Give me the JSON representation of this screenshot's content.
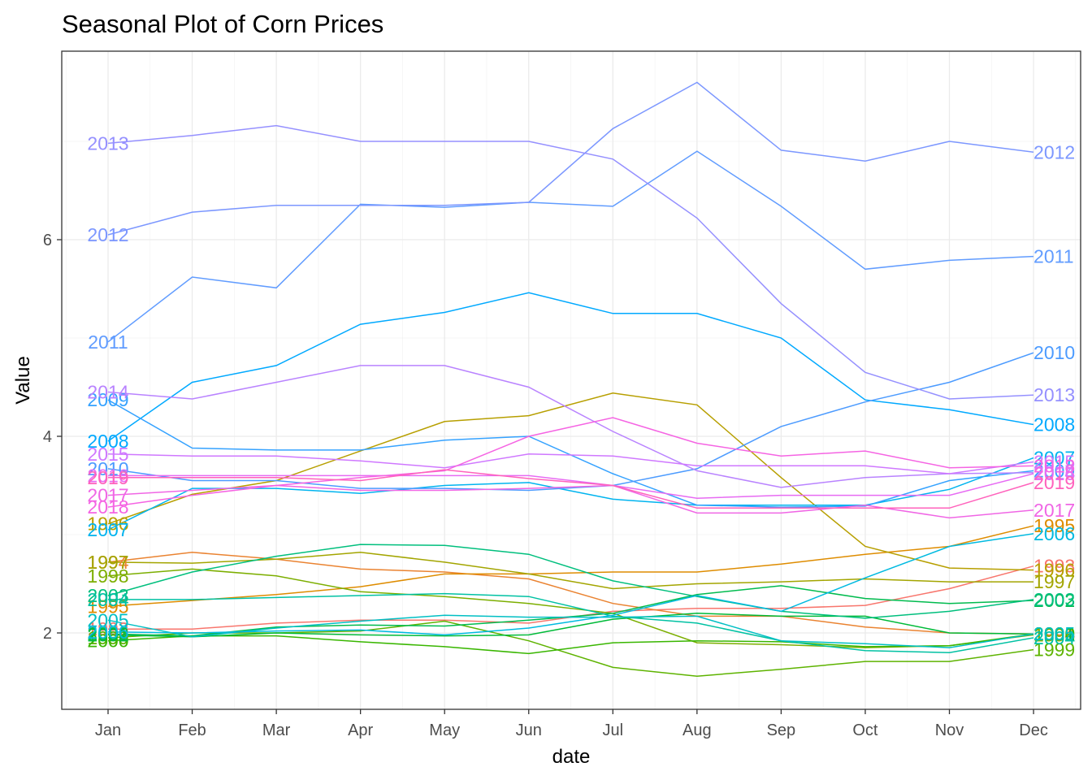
{
  "chart_data": {
    "type": "line",
    "title": "Seasonal Plot of Corn Prices",
    "xlabel": "date",
    "ylabel": "Value",
    "categories": [
      "Jan",
      "Feb",
      "Mar",
      "Apr",
      "May",
      "Jun",
      "Jul",
      "Aug",
      "Sep",
      "Oct",
      "Nov",
      "Dec"
    ],
    "ylim": [
      1.2,
      7.9
    ],
    "yticks": [
      2,
      4,
      6
    ],
    "grid": true,
    "legend": "none (direct year labels at both ends of each line)",
    "series": [
      {
        "name": "1993",
        "color": "#F8766D",
        "values": [
          2.04,
          2.04,
          2.1,
          2.13,
          2.13,
          2.1,
          2.22,
          2.25,
          2.25,
          2.28,
          2.45,
          2.68
        ]
      },
      {
        "name": "1994",
        "color": "#EA8331",
        "values": [
          2.72,
          2.82,
          2.75,
          2.65,
          2.62,
          2.55,
          2.3,
          2.17,
          2.17,
          2.06,
          2.0,
          1.99
        ]
      },
      {
        "name": "1995",
        "color": "#DE8C00",
        "values": [
          2.27,
          2.33,
          2.39,
          2.47,
          2.6,
          2.6,
          2.62,
          2.62,
          2.7,
          2.8,
          2.88,
          3.09
        ]
      },
      {
        "name": "1996",
        "color": "#B79F00",
        "values": [
          3.11,
          3.41,
          3.55,
          3.85,
          4.15,
          4.21,
          4.44,
          4.32,
          3.58,
          2.88,
          2.66,
          2.64
        ]
      },
      {
        "name": "1997",
        "color": "#A3A500",
        "values": [
          2.72,
          2.71,
          2.75,
          2.82,
          2.72,
          2.6,
          2.45,
          2.5,
          2.52,
          2.55,
          2.52,
          2.52
        ]
      },
      {
        "name": "1998",
        "color": "#7CAE00",
        "values": [
          2.58,
          2.65,
          2.58,
          2.42,
          2.37,
          2.3,
          2.2,
          1.9,
          1.88,
          1.85,
          1.87,
          1.98
        ]
      },
      {
        "name": "1999",
        "color": "#5EB300",
        "values": [
          1.95,
          2.0,
          2.0,
          2.02,
          2.12,
          1.92,
          1.65,
          1.56,
          1.63,
          1.71,
          1.71,
          1.83
        ]
      },
      {
        "name": "2000",
        "color": "#39B600",
        "values": [
          1.92,
          1.97,
          1.97,
          1.91,
          1.86,
          1.79,
          1.9,
          1.92,
          1.91,
          1.86,
          1.87,
          1.99
        ]
      },
      {
        "name": "2001",
        "color": "#00BA38",
        "values": [
          1.98,
          1.96,
          2.0,
          1.98,
          1.97,
          1.98,
          2.14,
          2.2,
          2.17,
          2.17,
          2.0,
          1.99
        ]
      },
      {
        "name": "2002",
        "color": "#00BB4E",
        "values": [
          1.99,
          1.97,
          2.06,
          2.08,
          2.07,
          2.13,
          2.2,
          2.39,
          2.48,
          2.35,
          2.3,
          2.33
        ]
      },
      {
        "name": "2003",
        "color": "#00BF7D",
        "values": [
          2.38,
          2.62,
          2.78,
          2.9,
          2.89,
          2.8,
          2.53,
          2.37,
          2.22,
          2.15,
          2.22,
          2.34
        ]
      },
      {
        "name": "2004",
        "color": "#00C1A3",
        "values": [
          2.34,
          2.34,
          2.36,
          2.38,
          2.4,
          2.37,
          2.17,
          2.1,
          1.92,
          1.82,
          1.8,
          1.95
        ]
      },
      {
        "name": "2005",
        "color": "#00BFC4",
        "values": [
          2.13,
          1.96,
          2.05,
          2.12,
          2.18,
          2.16,
          2.16,
          2.17,
          1.92,
          1.89,
          1.85,
          1.99
        ]
      },
      {
        "name": "2006",
        "color": "#00BAE0",
        "values": [
          2.01,
          2.0,
          2.02,
          2.03,
          1.98,
          2.05,
          2.18,
          2.38,
          2.22,
          2.56,
          2.88,
          3.01
        ]
      },
      {
        "name": "2007",
        "color": "#00B4EF",
        "values": [
          3.05,
          3.47,
          3.47,
          3.42,
          3.5,
          3.53,
          3.36,
          3.3,
          3.3,
          3.3,
          3.46,
          3.78
        ]
      },
      {
        "name": "2008",
        "color": "#00A9FF",
        "values": [
          3.95,
          4.55,
          4.72,
          5.14,
          5.26,
          5.46,
          5.25,
          5.25,
          5.0,
          4.37,
          4.27,
          4.12
        ]
      },
      {
        "name": "2009",
        "color": "#35A2FF",
        "values": [
          4.37,
          3.88,
          3.86,
          3.86,
          3.96,
          4.0,
          3.62,
          3.3,
          3.28,
          3.29,
          3.55,
          3.65
        ]
      },
      {
        "name": "2010",
        "color": "#4C9BFF",
        "values": [
          3.67,
          3.55,
          3.55,
          3.47,
          3.47,
          3.45,
          3.5,
          3.67,
          4.1,
          4.35,
          4.55,
          4.85
        ]
      },
      {
        "name": "2011",
        "color": "#619CFF",
        "values": [
          4.96,
          5.62,
          5.51,
          6.36,
          6.33,
          6.38,
          6.34,
          6.9,
          6.34,
          5.7,
          5.79,
          5.83
        ]
      },
      {
        "name": "2012",
        "color": "#7C97FF",
        "values": [
          6.05,
          6.28,
          6.35,
          6.35,
          6.35,
          6.38,
          7.13,
          7.6,
          6.91,
          6.8,
          7.0,
          6.89
        ]
      },
      {
        "name": "2013",
        "color": "#9590FF",
        "values": [
          6.98,
          7.06,
          7.16,
          7.0,
          7.0,
          7.0,
          6.82,
          6.22,
          5.35,
          4.65,
          4.38,
          4.42
        ]
      },
      {
        "name": "2014",
        "color": "#B983FF",
        "values": [
          4.45,
          4.38,
          4.55,
          4.72,
          4.72,
          4.5,
          4.05,
          3.65,
          3.48,
          3.58,
          3.62,
          3.63
        ]
      },
      {
        "name": "2015",
        "color": "#CF78FF",
        "values": [
          3.82,
          3.8,
          3.8,
          3.75,
          3.68,
          3.82,
          3.8,
          3.7,
          3.7,
          3.7,
          3.62,
          3.74
        ]
      },
      {
        "name": "2016",
        "color": "#E76BF3",
        "values": [
          3.6,
          3.6,
          3.6,
          3.6,
          3.6,
          3.6,
          3.5,
          3.37,
          3.4,
          3.4,
          3.4,
          3.62
        ]
      },
      {
        "name": "2017",
        "color": "#F066E5",
        "values": [
          3.4,
          3.45,
          3.5,
          3.45,
          3.45,
          3.47,
          3.5,
          3.22,
          3.22,
          3.3,
          3.17,
          3.25
        ]
      },
      {
        "name": "2018",
        "color": "#F564E3",
        "values": [
          3.28,
          3.4,
          3.5,
          3.58,
          3.65,
          4.0,
          4.19,
          3.93,
          3.8,
          3.85,
          3.68,
          3.7
        ]
      },
      {
        "name": "2019",
        "color": "#FF62BC",
        "values": [
          3.58,
          3.58,
          3.58,
          3.55,
          3.66,
          3.57,
          3.5,
          3.27,
          3.27,
          3.27,
          3.27,
          3.53
        ]
      }
    ]
  }
}
